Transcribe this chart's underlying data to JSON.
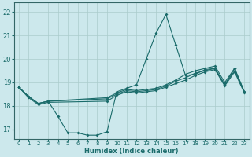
{
  "title": "",
  "xlabel": "Humidex (Indice chaleur)",
  "ylabel": "",
  "bg_color": "#cce8ec",
  "grid_color": "#aacccc",
  "line_color": "#1a6b6a",
  "spine_color": "#336666",
  "xlim": [
    -0.5,
    23.5
  ],
  "ylim": [
    16.6,
    22.4
  ],
  "yticks": [
    17,
    18,
    19,
    20,
    21,
    22
  ],
  "xticks": [
    0,
    1,
    2,
    3,
    4,
    5,
    6,
    7,
    8,
    9,
    10,
    11,
    12,
    13,
    14,
    15,
    16,
    17,
    18,
    19,
    20,
    21,
    22,
    23
  ],
  "lines": [
    {
      "x": [
        0,
        1,
        2,
        3,
        4,
        5,
        6,
        7,
        8,
        9,
        10,
        11,
        12,
        13,
        14,
        15,
        16,
        17,
        18,
        19,
        20,
        21,
        22,
        23
      ],
      "y": [
        18.8,
        18.4,
        18.1,
        18.2,
        17.55,
        16.85,
        16.85,
        16.75,
        16.75,
        16.9,
        18.6,
        18.75,
        18.9,
        20.0,
        21.1,
        21.9,
        20.6,
        19.3,
        19.35,
        19.55,
        19.6,
        18.9,
        19.6,
        18.6
      ]
    },
    {
      "x": [
        0,
        1,
        2,
        3,
        9,
        10,
        11,
        12,
        13,
        14,
        15,
        16,
        17,
        18,
        19,
        20,
        21,
        22,
        23
      ],
      "y": [
        18.8,
        18.4,
        18.1,
        18.2,
        18.35,
        18.55,
        18.7,
        18.65,
        18.7,
        18.75,
        18.9,
        19.1,
        19.35,
        19.5,
        19.6,
        19.7,
        19.0,
        19.6,
        18.6
      ]
    },
    {
      "x": [
        0,
        1,
        2,
        3,
        9,
        10,
        11,
        12,
        13,
        14,
        15,
        16,
        17,
        18,
        19,
        20,
        21,
        22,
        23
      ],
      "y": [
        18.8,
        18.4,
        18.1,
        18.2,
        18.3,
        18.5,
        18.65,
        18.6,
        18.65,
        18.7,
        18.85,
        19.05,
        19.2,
        19.4,
        19.5,
        19.6,
        18.9,
        19.5,
        18.6
      ]
    },
    {
      "x": [
        0,
        1,
        2,
        3,
        9,
        10,
        11,
        12,
        13,
        14,
        15,
        16,
        17,
        18,
        19,
        20,
        21,
        22,
        23
      ],
      "y": [
        18.8,
        18.35,
        18.05,
        18.15,
        18.2,
        18.45,
        18.6,
        18.55,
        18.6,
        18.65,
        18.8,
        18.95,
        19.1,
        19.3,
        19.45,
        19.55,
        18.85,
        19.45,
        18.55
      ]
    }
  ],
  "tick_fontsize": 5,
  "xlabel_fontsize": 6,
  "marker_size": 2.0,
  "linewidth": 0.8
}
